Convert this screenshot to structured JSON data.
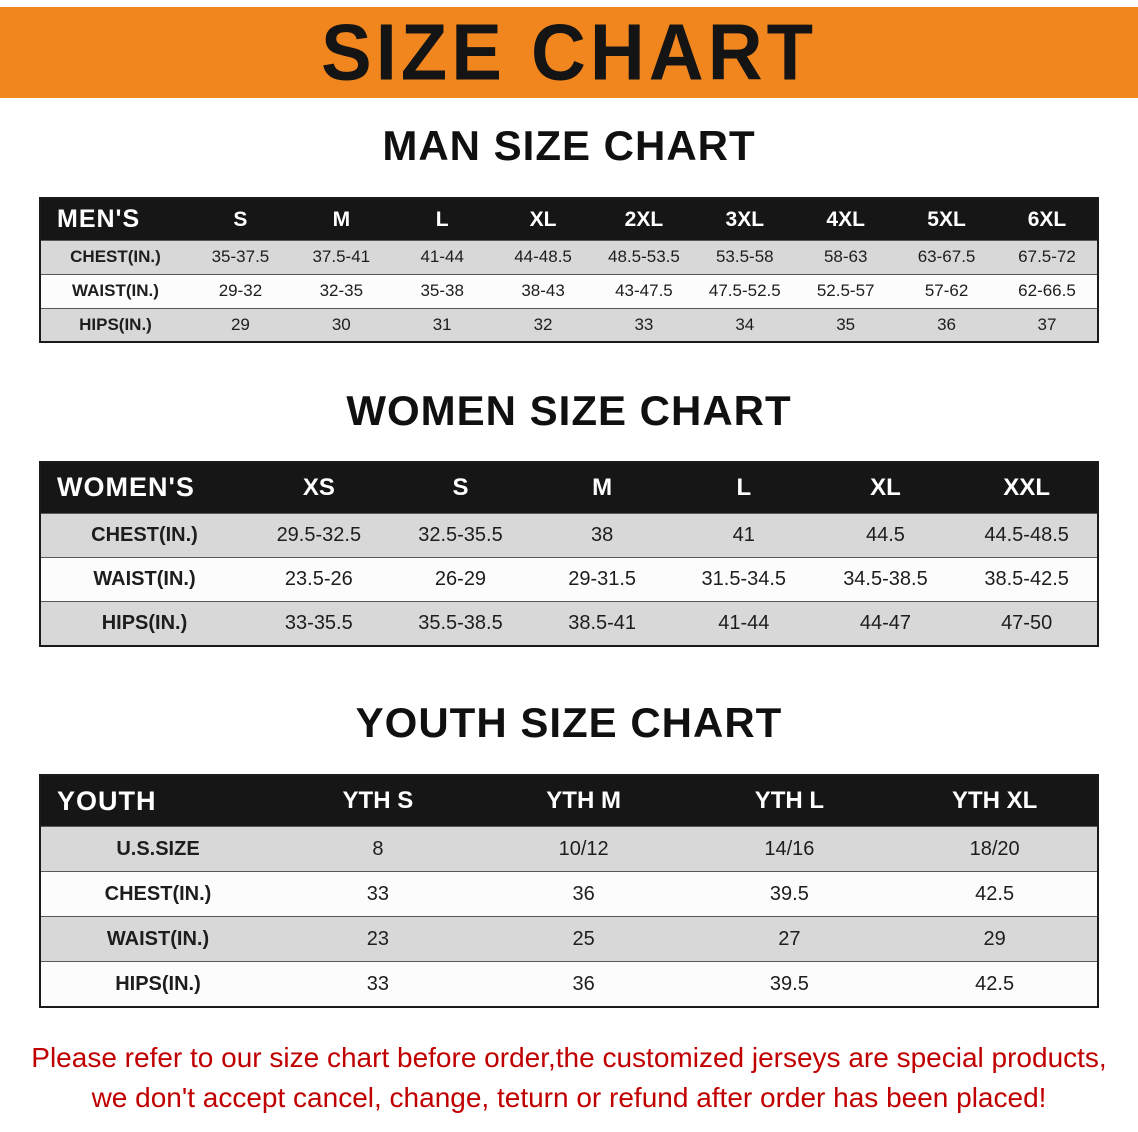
{
  "banner": {
    "title": "SIZE CHART",
    "bg_color": "#F1861E"
  },
  "sections": {
    "mens": {
      "heading": "MAN SIZE CHART",
      "label": "MEN'S",
      "columns": [
        "S",
        "M",
        "L",
        "XL",
        "2XL",
        "3XL",
        "4XL",
        "5XL",
        "6XL"
      ],
      "rows": [
        {
          "label": "CHEST(IN.)",
          "values": [
            "35-37.5",
            "37.5-41",
            "41-44",
            "44-48.5",
            "48.5-53.5",
            "53.5-58",
            "58-63",
            "63-67.5",
            "67.5-72"
          ]
        },
        {
          "label": "WAIST(IN.)",
          "values": [
            "29-32",
            "32-35",
            "35-38",
            "38-43",
            "43-47.5",
            "47.5-52.5",
            "52.5-57",
            "57-62",
            "62-66.5"
          ]
        },
        {
          "label": "HIPS(IN.)",
          "values": [
            "29",
            "30",
            "31",
            "32",
            "33",
            "34",
            "35",
            "36",
            "37"
          ]
        }
      ]
    },
    "womens": {
      "heading": "WOMEN SIZE CHART",
      "label": "WOMEN'S",
      "columns": [
        "XS",
        "S",
        "M",
        "L",
        "XL",
        "XXL"
      ],
      "rows": [
        {
          "label": "CHEST(IN.)",
          "values": [
            "29.5-32.5",
            "32.5-35.5",
            "38",
            "41",
            "44.5",
            "44.5-48.5"
          ]
        },
        {
          "label": "WAIST(IN.)",
          "values": [
            "23.5-26",
            "26-29",
            "29-31.5",
            "31.5-34.5",
            "34.5-38.5",
            "38.5-42.5"
          ]
        },
        {
          "label": "HIPS(IN.)",
          "values": [
            "33-35.5",
            "35.5-38.5",
            "38.5-41",
            "41-44",
            "44-47",
            "47-50"
          ]
        }
      ]
    },
    "youth": {
      "heading": "YOUTH SIZE CHART",
      "label": "YOUTH",
      "columns": [
        "YTH S",
        "YTH M",
        "YTH L",
        "YTH XL"
      ],
      "rows": [
        {
          "label": "U.S.SIZE",
          "values": [
            "8",
            "10/12",
            "14/16",
            "18/20"
          ]
        },
        {
          "label": "CHEST(IN.)",
          "values": [
            "33",
            "36",
            "39.5",
            "42.5"
          ]
        },
        {
          "label": "WAIST(IN.)",
          "values": [
            "23",
            "25",
            "27",
            "29"
          ]
        },
        {
          "label": "HIPS(IN.)",
          "values": [
            "33",
            "36",
            "39.5",
            "42.5"
          ]
        }
      ]
    }
  },
  "disclaimer": {
    "line1": "Please refer to our size chart before order,the customized jerseys are special products,",
    "line2": "we don't accept cancel, change, teturn or refund after order has been placed!",
    "color": "#C00000"
  }
}
